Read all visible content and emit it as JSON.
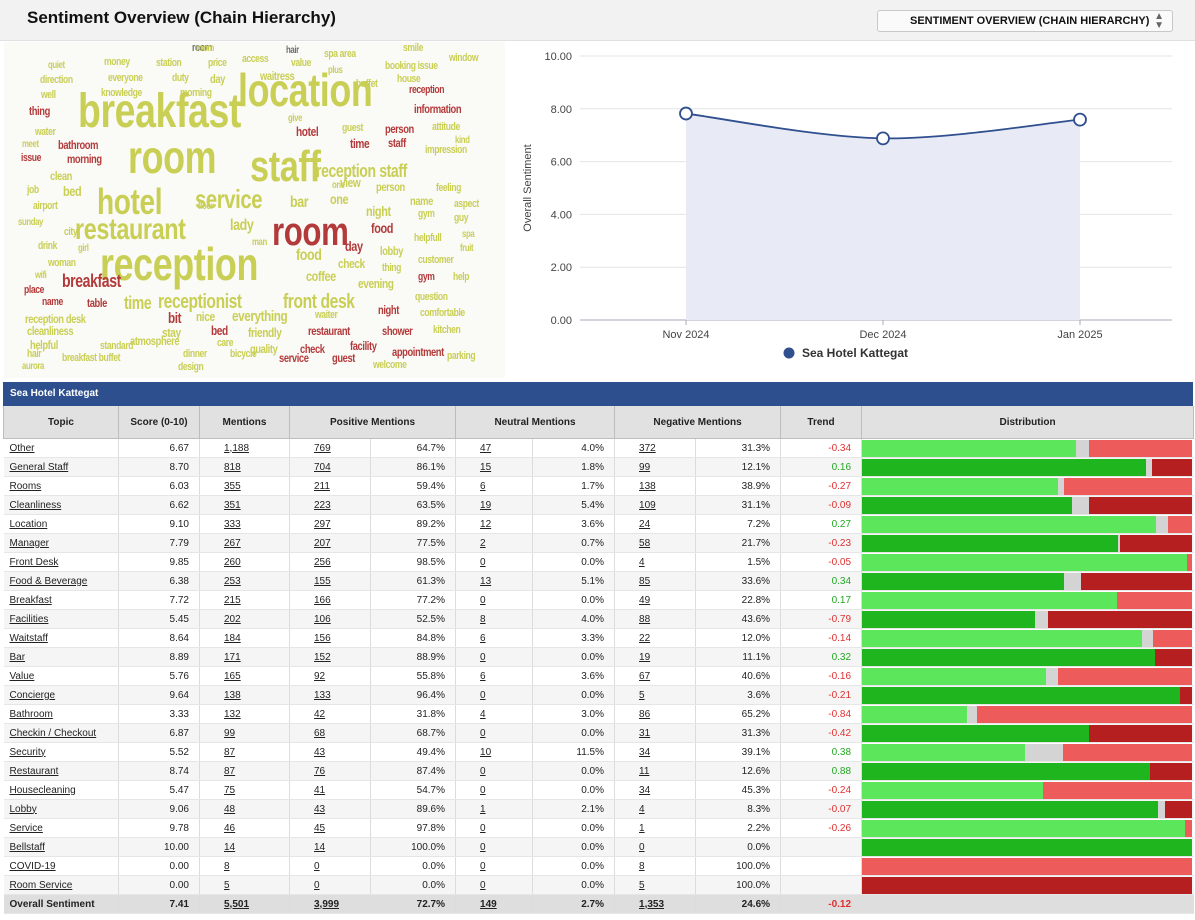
{
  "header": {
    "title": "Sentiment Overview (Chain Hierarchy)",
    "select_value": "SENTIMENT OVERVIEW (CHAIN HIERARCHY)"
  },
  "wordcloud": [
    {
      "t": "breakfast",
      "s": 48,
      "c": "y"
    },
    {
      "t": "location",
      "s": 46,
      "c": "y"
    },
    {
      "t": "room",
      "s": 46,
      "c": "y"
    },
    {
      "t": "staff",
      "s": 44,
      "c": "y"
    },
    {
      "t": "reception",
      "s": 46,
      "c": "y"
    },
    {
      "t": "hotel",
      "s": 36,
      "c": "y"
    },
    {
      "t": "room",
      "s": 40,
      "c": "r"
    },
    {
      "t": "restaurant",
      "s": 30,
      "c": "y"
    },
    {
      "t": "service",
      "s": 26,
      "c": "y"
    },
    {
      "t": "breakfast",
      "s": 18,
      "c": "r"
    },
    {
      "t": "receptionist",
      "s": 20,
      "c": "y"
    },
    {
      "t": "front desk",
      "s": 20,
      "c": "y"
    },
    {
      "t": "reception staff",
      "s": 18,
      "c": "y"
    },
    {
      "t": "time",
      "s": 18,
      "c": "y"
    },
    {
      "t": "food",
      "s": 16,
      "c": "y"
    },
    {
      "t": "coffee",
      "s": 14,
      "c": "y"
    },
    {
      "t": "lady",
      "s": 16,
      "c": "y"
    },
    {
      "t": "bar",
      "s": 16,
      "c": "y"
    },
    {
      "t": "one",
      "s": 14,
      "c": "y"
    },
    {
      "t": "view",
      "s": 13,
      "c": "y"
    },
    {
      "t": "night",
      "s": 14,
      "c": "y"
    },
    {
      "t": "food",
      "s": 14,
      "c": "r"
    },
    {
      "t": "day",
      "s": 14,
      "c": "r"
    },
    {
      "t": "check",
      "s": 13,
      "c": "y"
    },
    {
      "t": "everything",
      "s": 15,
      "c": "y"
    },
    {
      "t": "bit",
      "s": 15,
      "c": "r"
    },
    {
      "t": "stay",
      "s": 13,
      "c": "y"
    },
    {
      "t": "nice",
      "s": 13,
      "c": "y"
    },
    {
      "t": "bed",
      "s": 13,
      "c": "r"
    },
    {
      "t": "friendly",
      "s": 13,
      "c": "y"
    },
    {
      "t": "table",
      "s": 12,
      "c": "r"
    },
    {
      "t": "name",
      "s": 11,
      "c": "r"
    },
    {
      "t": "reception desk",
      "s": 12,
      "c": "y"
    },
    {
      "t": "cleanliness",
      "s": 12,
      "c": "y"
    },
    {
      "t": "helpful",
      "s": 12,
      "c": "y"
    },
    {
      "t": "atmosphere",
      "s": 12,
      "c": "y"
    },
    {
      "t": "care",
      "s": 11,
      "c": "y"
    },
    {
      "t": "quality",
      "s": 12,
      "c": "y"
    },
    {
      "t": "check",
      "s": 12,
      "c": "r"
    },
    {
      "t": "facility",
      "s": 12,
      "c": "r"
    },
    {
      "t": "appointment",
      "s": 12,
      "c": "r"
    },
    {
      "t": "restaurant",
      "s": 12,
      "c": "r"
    },
    {
      "t": "waiter",
      "s": 11,
      "c": "y"
    },
    {
      "t": "shower",
      "s": 12,
      "c": "r"
    },
    {
      "t": "night",
      "s": 12,
      "c": "r"
    },
    {
      "t": "evening",
      "s": 13,
      "c": "y"
    },
    {
      "t": "lobby",
      "s": 12,
      "c": "y"
    },
    {
      "t": "thing",
      "s": 11,
      "c": "y"
    },
    {
      "t": "gym",
      "s": 11,
      "c": "r"
    },
    {
      "t": "customer",
      "s": 11,
      "c": "y"
    },
    {
      "t": "question",
      "s": 11,
      "c": "y"
    },
    {
      "t": "comfortable",
      "s": 11,
      "c": "y"
    },
    {
      "t": "kitchen",
      "s": 11,
      "c": "y"
    },
    {
      "t": "parking",
      "s": 11,
      "c": "y"
    },
    {
      "t": "welcome",
      "s": 11,
      "c": "y"
    },
    {
      "t": "guest",
      "s": 12,
      "c": "r"
    },
    {
      "t": "service",
      "s": 12,
      "c": "r"
    },
    {
      "t": "bicycle",
      "s": 11,
      "c": "y"
    },
    {
      "t": "dinner",
      "s": 11,
      "c": "y"
    },
    {
      "t": "design",
      "s": 11,
      "c": "y"
    },
    {
      "t": "standard",
      "s": 11,
      "c": "y"
    },
    {
      "t": "breakfast buffet",
      "s": 11,
      "c": "y"
    },
    {
      "t": "hair",
      "s": 11,
      "c": "y"
    },
    {
      "t": "aurora",
      "s": 10,
      "c": "y"
    },
    {
      "t": "place",
      "s": 11,
      "c": "r"
    },
    {
      "t": "wifi",
      "s": 10,
      "c": "y"
    },
    {
      "t": "woman",
      "s": 11,
      "c": "y"
    },
    {
      "t": "drink",
      "s": 11,
      "c": "y"
    },
    {
      "t": "girl",
      "s": 10,
      "c": "y"
    },
    {
      "t": "city",
      "s": 11,
      "c": "y"
    },
    {
      "t": "sunday",
      "s": 10,
      "c": "y"
    },
    {
      "t": "airport",
      "s": 11,
      "c": "y"
    },
    {
      "t": "job",
      "s": 11,
      "c": "y"
    },
    {
      "t": "bed",
      "s": 14,
      "c": "y"
    },
    {
      "t": "clean",
      "s": 12,
      "c": "y"
    },
    {
      "t": "issue",
      "s": 11,
      "c": "r"
    },
    {
      "t": "meet",
      "s": 10,
      "c": "y"
    },
    {
      "t": "bathroom",
      "s": 12,
      "c": "r"
    },
    {
      "t": "morning",
      "s": 12,
      "c": "r"
    },
    {
      "t": "water",
      "s": 11,
      "c": "y"
    },
    {
      "t": "thing",
      "s": 12,
      "c": "r"
    },
    {
      "t": "well",
      "s": 11,
      "c": "y"
    },
    {
      "t": "direction",
      "s": 11,
      "c": "y"
    },
    {
      "t": "quiet",
      "s": 10,
      "c": "y"
    },
    {
      "t": "money",
      "s": 11,
      "c": "y"
    },
    {
      "t": "everyone",
      "s": 11,
      "c": "y"
    },
    {
      "t": "knowledge",
      "s": 11,
      "c": "y"
    },
    {
      "t": "station",
      "s": 11,
      "c": "y"
    },
    {
      "t": "duty",
      "s": 11,
      "c": "y"
    },
    {
      "t": "price",
      "s": 11,
      "c": "y"
    },
    {
      "t": "day",
      "s": 12,
      "c": "y"
    },
    {
      "t": "morning",
      "s": 11,
      "c": "y"
    },
    {
      "t": "room",
      "s": 11,
      "c": "g"
    },
    {
      "t": "access",
      "s": 11,
      "c": "y"
    },
    {
      "t": "waitress",
      "s": 12,
      "c": "y"
    },
    {
      "t": "hair",
      "s": 10,
      "c": "g"
    },
    {
      "t": "value",
      "s": 11,
      "c": "y"
    },
    {
      "t": "plus",
      "s": 10,
      "c": "y"
    },
    {
      "t": "spa area",
      "s": 11,
      "c": "y"
    },
    {
      "t": "buffet",
      "s": 11,
      "c": "y"
    },
    {
      "t": "smile",
      "s": 11,
      "c": "y"
    },
    {
      "t": "booking issue",
      "s": 11,
      "c": "y"
    },
    {
      "t": "window",
      "s": 11,
      "c": "y"
    },
    {
      "t": "house",
      "s": 11,
      "c": "y"
    },
    {
      "t": "reception",
      "s": 11,
      "c": "r"
    },
    {
      "t": "information",
      "s": 12,
      "c": "r"
    },
    {
      "t": "give",
      "s": 10,
      "c": "y"
    },
    {
      "t": "guest",
      "s": 11,
      "c": "y"
    },
    {
      "t": "hotel",
      "s": 13,
      "c": "r"
    },
    {
      "t": "person",
      "s": 12,
      "c": "r"
    },
    {
      "t": "attitude",
      "s": 11,
      "c": "y"
    },
    {
      "t": "time",
      "s": 13,
      "c": "r"
    },
    {
      "t": "staff",
      "s": 12,
      "c": "r"
    },
    {
      "t": "kind",
      "s": 10,
      "c": "y"
    },
    {
      "t": "impression",
      "s": 11,
      "c": "y"
    },
    {
      "t": "person",
      "s": 12,
      "c": "y"
    },
    {
      "t": "feeling",
      "s": 11,
      "c": "y"
    },
    {
      "t": "name",
      "s": 12,
      "c": "y"
    },
    {
      "t": "aspect",
      "s": 11,
      "c": "y"
    },
    {
      "t": "gym",
      "s": 11,
      "c": "y"
    },
    {
      "t": "guy",
      "s": 11,
      "c": "y"
    },
    {
      "t": "floor",
      "s": 10,
      "c": "y"
    },
    {
      "t": "man",
      "s": 10,
      "c": "y"
    },
    {
      "t": "one",
      "s": 10,
      "c": "y"
    },
    {
      "t": "helpfull",
      "s": 11,
      "c": "y"
    },
    {
      "t": "spa",
      "s": 10,
      "c": "y"
    },
    {
      "t": "fruit",
      "s": 10,
      "c": "y"
    },
    {
      "t": "help",
      "s": 11,
      "c": "y"
    },
    {
      "t": "room",
      "s": 10,
      "c": "y"
    }
  ],
  "chart_data": {
    "type": "area",
    "ylabel": "Overall Sentiment",
    "ylim": [
      0,
      10
    ],
    "yticks": [
      "0.00",
      "2.00",
      "4.00",
      "6.00",
      "8.00",
      "10.00"
    ],
    "categories": [
      "Nov 2024",
      "Dec 2024",
      "Jan 2025"
    ],
    "series": [
      {
        "name": "Sea Hotel Kattegat",
        "values": [
          7.82,
          6.88,
          7.59
        ],
        "color": "#2f4f8f"
      }
    ],
    "legend_position": "bottom"
  },
  "table": {
    "title": "Sea Hotel Kattegat",
    "headers": [
      "Topic",
      "Score (0-10)",
      "Mentions",
      "Positive Mentions",
      "Neutral Mentions",
      "Negative Mentions",
      "Trend",
      "Distribution"
    ],
    "rows": [
      [
        "Other",
        "6.67",
        "1,188",
        "769",
        "64.7%",
        "47",
        "4.0%",
        "372",
        "31.3%",
        "-0.34"
      ],
      [
        "General Staff",
        "8.70",
        "818",
        "704",
        "86.1%",
        "15",
        "1.8%",
        "99",
        "12.1%",
        "0.16"
      ],
      [
        "Rooms",
        "6.03",
        "355",
        "211",
        "59.4%",
        "6",
        "1.7%",
        "138",
        "38.9%",
        "-0.27"
      ],
      [
        "Cleanliness",
        "6.62",
        "351",
        "223",
        "63.5%",
        "19",
        "5.4%",
        "109",
        "31.1%",
        "-0.09"
      ],
      [
        "Location",
        "9.10",
        "333",
        "297",
        "89.2%",
        "12",
        "3.6%",
        "24",
        "7.2%",
        "0.27"
      ],
      [
        "Manager",
        "7.79",
        "267",
        "207",
        "77.5%",
        "2",
        "0.7%",
        "58",
        "21.7%",
        "-0.23"
      ],
      [
        "Front Desk",
        "9.85",
        "260",
        "256",
        "98.5%",
        "0",
        "0.0%",
        "4",
        "1.5%",
        "-0.05"
      ],
      [
        "Food & Beverage",
        "6.38",
        "253",
        "155",
        "61.3%",
        "13",
        "5.1%",
        "85",
        "33.6%",
        "0.34"
      ],
      [
        "Breakfast",
        "7.72",
        "215",
        "166",
        "77.2%",
        "0",
        "0.0%",
        "49",
        "22.8%",
        "0.17"
      ],
      [
        "Facilities",
        "5.45",
        "202",
        "106",
        "52.5%",
        "8",
        "4.0%",
        "88",
        "43.6%",
        "-0.79"
      ],
      [
        "Waitstaff",
        "8.64",
        "184",
        "156",
        "84.8%",
        "6",
        "3.3%",
        "22",
        "12.0%",
        "-0.14"
      ],
      [
        "Bar",
        "8.89",
        "171",
        "152",
        "88.9%",
        "0",
        "0.0%",
        "19",
        "11.1%",
        "0.32"
      ],
      [
        "Value",
        "5.76",
        "165",
        "92",
        "55.8%",
        "6",
        "3.6%",
        "67",
        "40.6%",
        "-0.16"
      ],
      [
        "Concierge",
        "9.64",
        "138",
        "133",
        "96.4%",
        "0",
        "0.0%",
        "5",
        "3.6%",
        "-0.21"
      ],
      [
        "Bathroom",
        "3.33",
        "132",
        "42",
        "31.8%",
        "4",
        "3.0%",
        "86",
        "65.2%",
        "-0.84"
      ],
      [
        "Checkin / Checkout",
        "6.87",
        "99",
        "68",
        "68.7%",
        "0",
        "0.0%",
        "31",
        "31.3%",
        "-0.42"
      ],
      [
        "Security",
        "5.52",
        "87",
        "43",
        "49.4%",
        "10",
        "11.5%",
        "34",
        "39.1%",
        "0.38"
      ],
      [
        "Restaurant",
        "8.74",
        "87",
        "76",
        "87.4%",
        "0",
        "0.0%",
        "11",
        "12.6%",
        "0.88"
      ],
      [
        "Housecleaning",
        "5.47",
        "75",
        "41",
        "54.7%",
        "0",
        "0.0%",
        "34",
        "45.3%",
        "-0.24"
      ],
      [
        "Lobby",
        "9.06",
        "48",
        "43",
        "89.6%",
        "1",
        "2.1%",
        "4",
        "8.3%",
        "-0.07"
      ],
      [
        "Service",
        "9.78",
        "46",
        "45",
        "97.8%",
        "0",
        "0.0%",
        "1",
        "2.2%",
        "-0.26"
      ],
      [
        "Bellstaff",
        "10.00",
        "14",
        "14",
        "100.0%",
        "0",
        "0.0%",
        "0",
        "0.0%",
        ""
      ],
      [
        "COVID-19",
        "0.00",
        "8",
        "0",
        "0.0%",
        "0",
        "0.0%",
        "8",
        "100.0%",
        ""
      ],
      [
        "Room Service",
        "0.00",
        "5",
        "0",
        "0.0%",
        "0",
        "0.0%",
        "5",
        "100.0%",
        ""
      ]
    ],
    "total": [
      "Overall Sentiment",
      "7.41",
      "5,501",
      "3,999",
      "72.7%",
      "149",
      "2.7%",
      "1,353",
      "24.6%",
      "-0.12"
    ],
    "colors": {
      "pos_light": "#5ce65c",
      "pos_dark": "#1fb51f",
      "neutral": "#d4d4d4",
      "neg_light": "#ee5b5b",
      "neg_dark": "#b51f1f"
    }
  }
}
